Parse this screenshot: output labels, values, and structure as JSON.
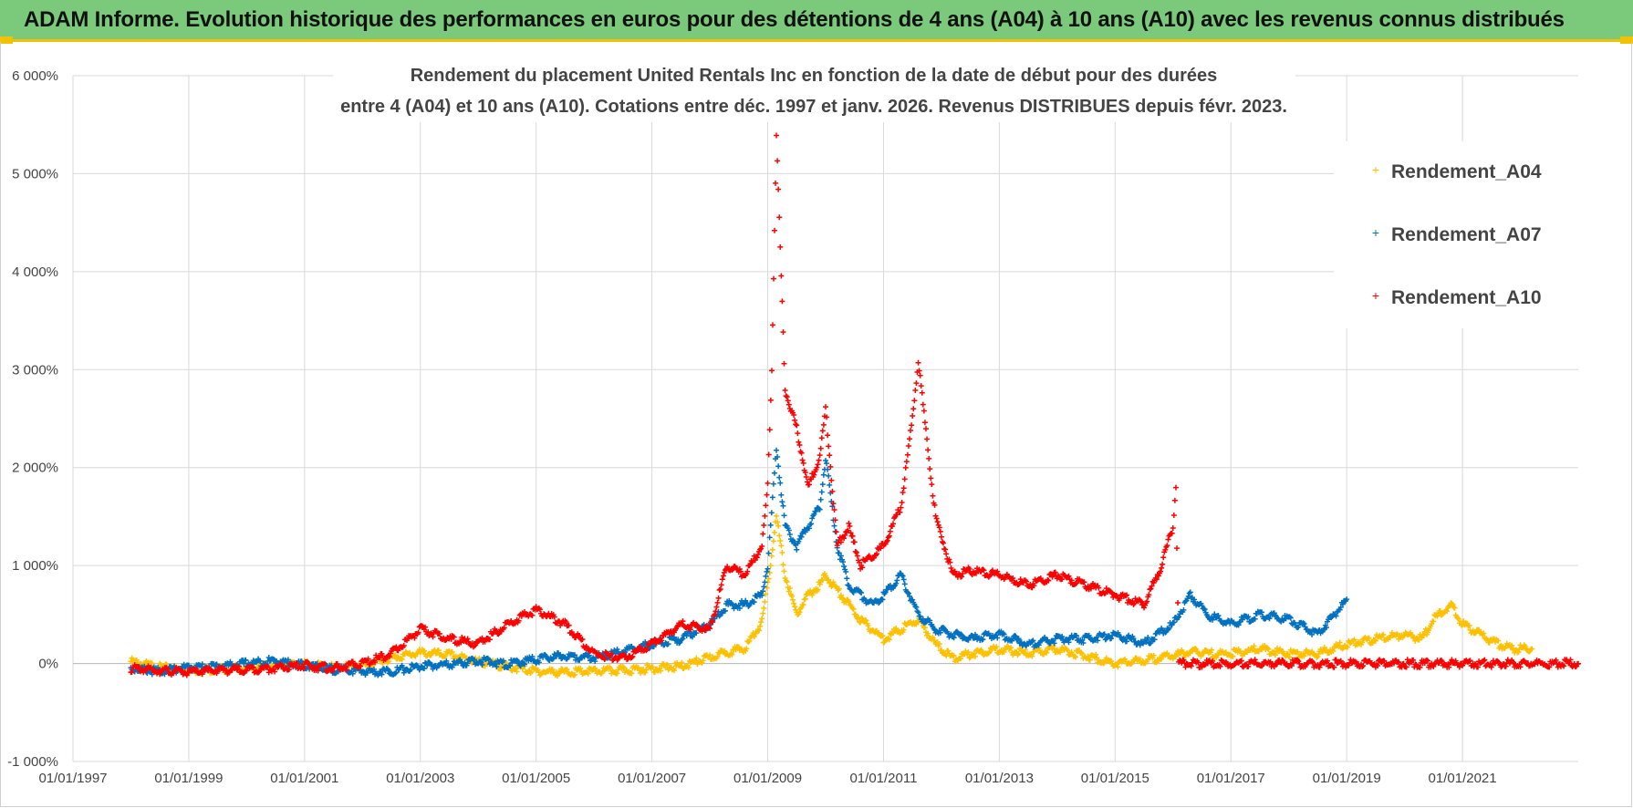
{
  "header": {
    "title": "ADAM Informe. Evolution historique des performances en euros pour des détentions de 4 ans (A04) à 10 ans (A10) avec les revenus connus distribués"
  },
  "colors": {
    "banner": "#7bc97a",
    "accent": "#f2c200",
    "A04": "#ffc000",
    "A07": "#0070c0",
    "A10": "#ff0000",
    "grid": "#d9d9d9"
  },
  "chart_data": {
    "type": "scatter",
    "title_lines": [
      "Rendement du placement United Rentals Inc en fonction de la date de début pour des durées",
      "entre 4 (A04) et 10 ans (A10).  Cotations entre déc. 1997 et janv. 2026. Revenus DISTRIBUES  depuis févr.  2023."
    ],
    "xlabel": "",
    "ylabel": "",
    "xlim": [
      1997.0,
      2023.0
    ],
    "ylim": [
      -1000,
      6000
    ],
    "x_ticks": [
      "01/01/1997",
      "01/01/1999",
      "01/01/2001",
      "01/01/2003",
      "01/01/2005",
      "01/01/2007",
      "01/01/2009",
      "01/01/2011",
      "01/01/2013",
      "01/01/2015",
      "01/01/2017",
      "01/01/2019",
      "01/01/2021"
    ],
    "y_ticks": [
      "-1 000%",
      "0%",
      "1 000%",
      "2 000%",
      "3 000%",
      "4 000%",
      "5 000%",
      "6 000%"
    ],
    "legend_position": "right",
    "series": [
      {
        "name": "Rendement_A04",
        "x": [
          1998.0,
          1998.5,
          1999.0,
          1999.5,
          2000.0,
          2000.5,
          2001.0,
          2001.5,
          2002.0,
          2002.5,
          2003.0,
          2003.5,
          2004.0,
          2004.5,
          2005.0,
          2005.5,
          2006.0,
          2006.5,
          2007.0,
          2007.5,
          2008.0,
          2008.3,
          2008.6,
          2008.9,
          2009.0,
          2009.15,
          2009.3,
          2009.5,
          2009.7,
          2009.9,
          2010.0,
          2010.2,
          2010.4,
          2010.6,
          2010.8,
          2011.0,
          2011.3,
          2011.6,
          2011.9,
          2012.2,
          2012.5,
          2013.0,
          2013.5,
          2014.0,
          2014.5,
          2015.0,
          2015.5,
          2016.0,
          2016.3,
          2016.6,
          2017.0,
          2017.5,
          2018.0,
          2018.5,
          2019.0,
          2019.5,
          2020.0,
          2020.3,
          2020.5,
          2020.8,
          2021.0,
          2021.3,
          2021.6,
          2021.9,
          2022.2
        ],
        "y": [
          20,
          -40,
          -70,
          -60,
          -40,
          -20,
          -10,
          -40,
          -20,
          60,
          110,
          90,
          20,
          -30,
          -80,
          -90,
          -80,
          -70,
          -50,
          -30,
          60,
          120,
          150,
          420,
          800,
          1500,
          900,
          500,
          700,
          800,
          900,
          750,
          600,
          450,
          350,
          250,
          350,
          450,
          200,
          50,
          100,
          150,
          100,
          150,
          80,
          0,
          30,
          80,
          120,
          100,
          100,
          150,
          100,
          100,
          200,
          250,
          300,
          250,
          450,
          600,
          400,
          300,
          200,
          150,
          150
        ]
      },
      {
        "name": "Rendement_A07",
        "x": [
          1998.0,
          1998.5,
          1999.0,
          1999.5,
          2000.0,
          2000.5,
          2001.0,
          2001.5,
          2002.0,
          2002.5,
          2003.0,
          2003.5,
          2004.0,
          2004.5,
          2005.0,
          2005.5,
          2006.0,
          2006.5,
          2007.0,
          2007.5,
          2008.0,
          2008.3,
          2008.6,
          2008.9,
          2009.0,
          2009.15,
          2009.3,
          2009.5,
          2009.7,
          2009.9,
          2010.0,
          2010.2,
          2010.4,
          2010.6,
          2010.8,
          2011.0,
          2011.3,
          2011.6,
          2011.9,
          2012.2,
          2012.5,
          2013.0,
          2013.5,
          2014.0,
          2014.5,
          2015.0,
          2015.5,
          2016.0,
          2016.3,
          2016.6,
          2017.0,
          2017.5,
          2018.0,
          2018.5,
          2019.0
        ],
        "y": [
          -50,
          -80,
          -40,
          -30,
          0,
          30,
          -20,
          -60,
          -80,
          -80,
          -30,
          -10,
          30,
          -10,
          40,
          80,
          60,
          120,
          200,
          250,
          400,
          600,
          600,
          700,
          1000,
          2200,
          1400,
          1200,
          1400,
          1600,
          2100,
          1200,
          800,
          700,
          600,
          700,
          900,
          500,
          350,
          300,
          250,
          300,
          200,
          250,
          250,
          300,
          200,
          400,
          700,
          500,
          400,
          500,
          450,
          300,
          650
        ]
      },
      {
        "name": "Rendement_A10",
        "x": [
          1998.0,
          1998.5,
          1999.0,
          1999.5,
          2000.0,
          2000.5,
          2001.0,
          2001.5,
          2002.0,
          2002.5,
          2003.0,
          2003.5,
          2004.0,
          2004.5,
          2005.0,
          2005.5,
          2006.0,
          2006.5,
          2007.0,
          2007.5,
          2008.0,
          2008.3,
          2008.6,
          2008.9,
          2009.0,
          2009.07,
          2009.15,
          2009.3,
          2009.5,
          2009.7,
          2009.9,
          2010.0,
          2010.2,
          2010.4,
          2010.6,
          2010.8,
          2011.0,
          2011.3,
          2011.5,
          2011.6,
          2011.8,
          2011.9,
          2012.2,
          2012.5,
          2013.0,
          2013.5,
          2014.0,
          2014.5,
          2015.0,
          2015.5,
          2015.8,
          2016.0,
          2016.05,
          2016.1,
          2017.0,
          2018.0,
          2019.0,
          2020.0,
          2021.0,
          2022.0,
          2023.0
        ],
        "y": [
          -50,
          -70,
          -90,
          -70,
          -60,
          -50,
          -20,
          -50,
          0,
          100,
          350,
          250,
          200,
          400,
          550,
          400,
          100,
          50,
          200,
          400,
          350,
          1000,
          900,
          1200,
          1800,
          3000,
          5400,
          2800,
          2400,
          1800,
          2100,
          2600,
          1200,
          1400,
          1000,
          1100,
          1200,
          1600,
          2500,
          3100,
          2000,
          1500,
          900,
          950,
          900,
          800,
          900,
          800,
          700,
          600,
          1000,
          1400,
          1800,
          0,
          0,
          0,
          0,
          0,
          0,
          0,
          0
        ]
      }
    ]
  }
}
